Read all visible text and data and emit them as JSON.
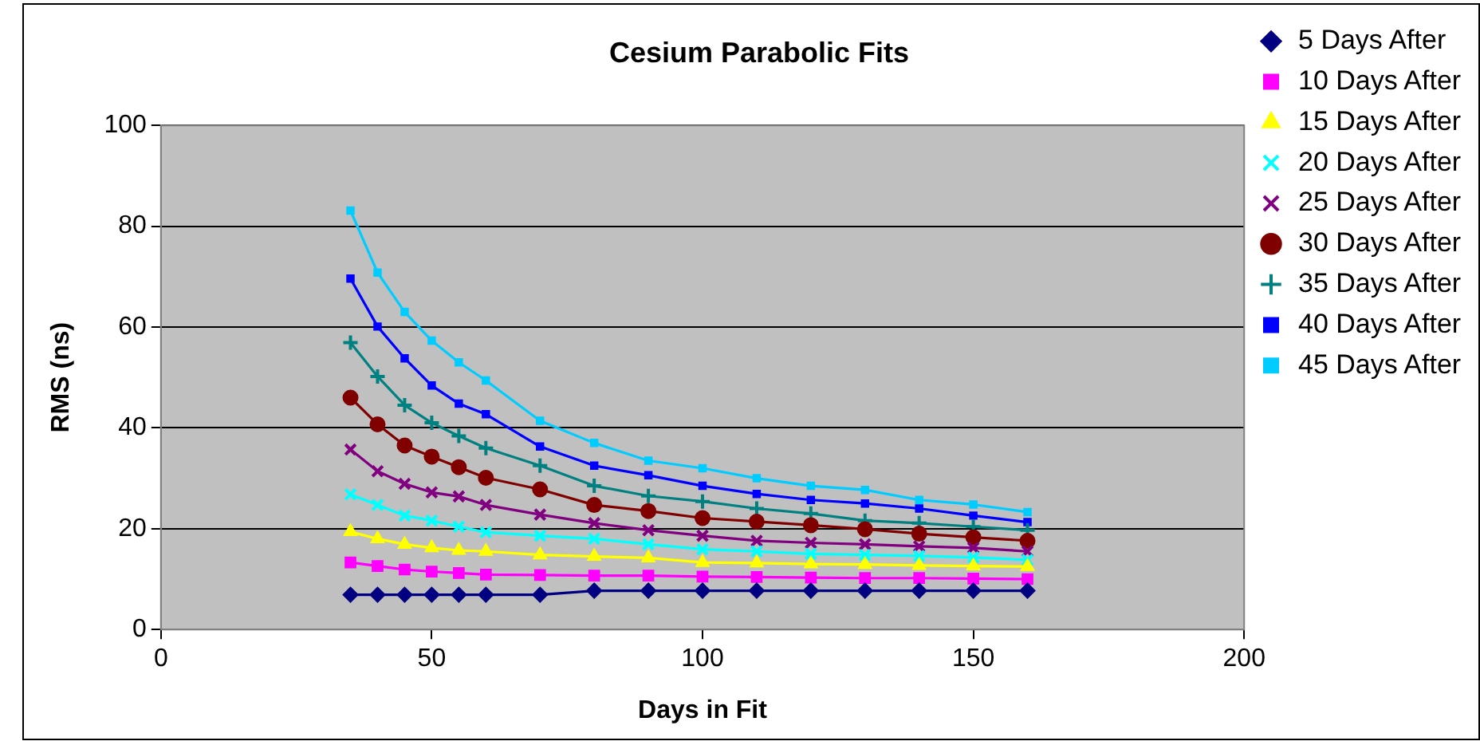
{
  "chart_data": {
    "type": "line",
    "title": "Cesium Parabolic Fits",
    "xlabel": "Days in Fit",
    "ylabel": "RMS (ns)",
    "x": [
      35,
      40,
      45,
      50,
      55,
      60,
      70,
      80,
      90,
      100,
      110,
      120,
      130,
      140,
      150,
      160
    ],
    "xlim": [
      0,
      200
    ],
    "xticks": [
      0,
      50,
      100,
      150,
      200
    ],
    "ylim": [
      0,
      100
    ],
    "yticks": [
      0,
      20,
      40,
      60,
      80,
      100
    ],
    "grid": "y",
    "legend": "right",
    "series": [
      {
        "name": "5 Days After",
        "color": "#000080",
        "marker": "diamond",
        "values": [
          6.9,
          6.9,
          6.9,
          6.9,
          6.9,
          6.9,
          6.9,
          7.7,
          7.7,
          7.7,
          7.7,
          7.7,
          7.7,
          7.7,
          7.7,
          7.7
        ]
      },
      {
        "name": "10 Days After",
        "color": "#ff00ff",
        "marker": "square",
        "values": [
          13.3,
          12.6,
          11.9,
          11.5,
          11.2,
          10.9,
          10.8,
          10.7,
          10.7,
          10.5,
          10.4,
          10.3,
          10.2,
          10.2,
          10.1,
          10.0
        ]
      },
      {
        "name": "15 Days After",
        "color": "#ffff00",
        "marker": "triangle",
        "values": [
          19.4,
          18.0,
          16.9,
          16.2,
          15.7,
          15.5,
          14.8,
          14.5,
          14.2,
          13.3,
          13.2,
          13.0,
          12.9,
          12.7,
          12.6,
          12.5
        ]
      },
      {
        "name": "20 Days After",
        "color": "#00ffff",
        "marker": "cross",
        "values": [
          26.8,
          24.7,
          22.6,
          21.6,
          20.4,
          19.3,
          18.6,
          18.0,
          16.9,
          15.9,
          15.5,
          15.0,
          14.8,
          14.6,
          14.3,
          13.8
        ]
      },
      {
        "name": "25 Days After",
        "color": "#800080",
        "marker": "cross",
        "values": [
          35.7,
          31.4,
          28.9,
          27.2,
          26.4,
          24.7,
          22.8,
          21.1,
          19.7,
          18.6,
          17.6,
          17.2,
          16.9,
          16.5,
          16.2,
          15.5
        ]
      },
      {
        "name": "30 Days After",
        "color": "#800000",
        "marker": "circle",
        "values": [
          46.0,
          40.7,
          36.5,
          34.3,
          32.2,
          30.1,
          27.8,
          24.7,
          23.5,
          22.1,
          21.4,
          20.7,
          19.9,
          19.0,
          18.3,
          17.6
        ]
      },
      {
        "name": "35 Days After",
        "color": "#008080",
        "marker": "cross",
        "values": [
          56.9,
          50.2,
          44.5,
          41.0,
          38.4,
          36.0,
          32.5,
          28.5,
          26.5,
          25.4,
          24.0,
          23.0,
          21.6,
          21.1,
          20.4,
          19.7
        ]
      },
      {
        "name": "40 Days After",
        "color": "#0000ff",
        "marker": "square",
        "values": [
          69.6,
          60.1,
          53.8,
          48.4,
          44.8,
          42.7,
          36.3,
          32.5,
          30.6,
          28.5,
          26.9,
          25.7,
          25.0,
          24.0,
          22.6,
          21.3
        ]
      },
      {
        "name": "45 Days After",
        "color": "#00ccff",
        "marker": "square",
        "values": [
          83.1,
          70.8,
          63.0,
          57.3,
          53.0,
          49.4,
          41.4,
          37.0,
          33.5,
          32.0,
          30.0,
          28.5,
          27.7,
          25.7,
          24.8,
          23.3
        ]
      }
    ]
  }
}
